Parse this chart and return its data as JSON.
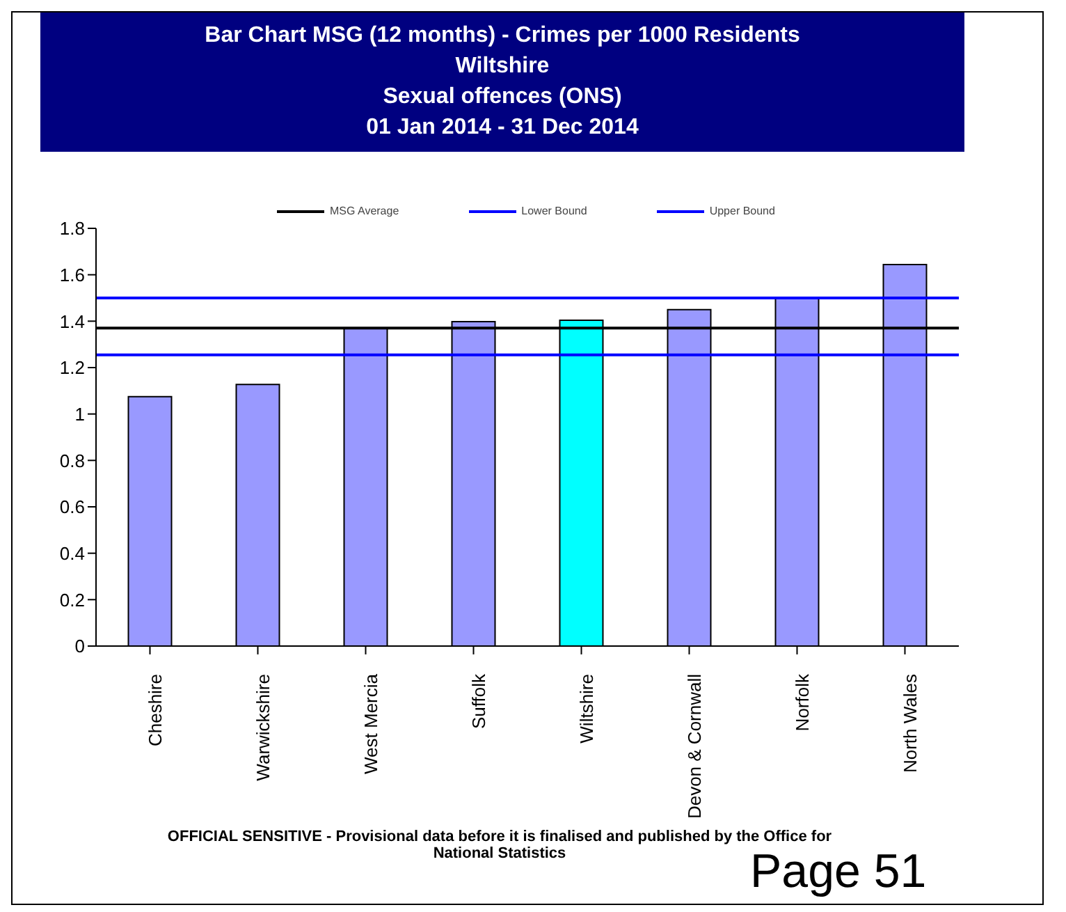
{
  "chart_data": {
    "type": "bar",
    "title": "Bar Chart MSG (12 months) - Crimes per 1000 Residents",
    "subtitle": "Wiltshire\nSexual offences (ONS)\n01 Jan 2014 - 31 Dec 2014",
    "categories": [
      "Cheshire",
      "Warwickshire",
      "West Mercia",
      "Suffolk",
      "Wiltshire",
      "Devon & Cornwall",
      "Norfolk",
      "North Wales"
    ],
    "values": [
      1.075,
      1.127,
      1.37,
      1.398,
      1.404,
      1.45,
      1.5,
      1.644
    ],
    "colors": [
      "#9999ff",
      "#9999ff",
      "#9999ff",
      "#9999ff",
      "#00ffff",
      "#9999ff",
      "#9999ff",
      "#9999ff"
    ],
    "ylim": [
      0,
      1.8
    ],
    "yticks": [
      0,
      0.2,
      0.4,
      0.6,
      0.8,
      1,
      1.2,
      1.4,
      1.6,
      1.8
    ],
    "grid": false,
    "legend": "top",
    "ref_lines": [
      {
        "axis": "y",
        "value": 1.37,
        "label": "MSG Average",
        "color": "#000000"
      },
      {
        "axis": "y",
        "value": 1.255,
        "label": "Lower Bound",
        "color": "#0000ff"
      },
      {
        "axis": "y",
        "value": 1.5,
        "label": "Upper Bound",
        "color": "#0000ff"
      }
    ],
    "annotations": [
      "OFFICIAL SENSITIVE  - Provisional data before it is finalised and published by the Office for National Statistics",
      "Page 51"
    ]
  }
}
